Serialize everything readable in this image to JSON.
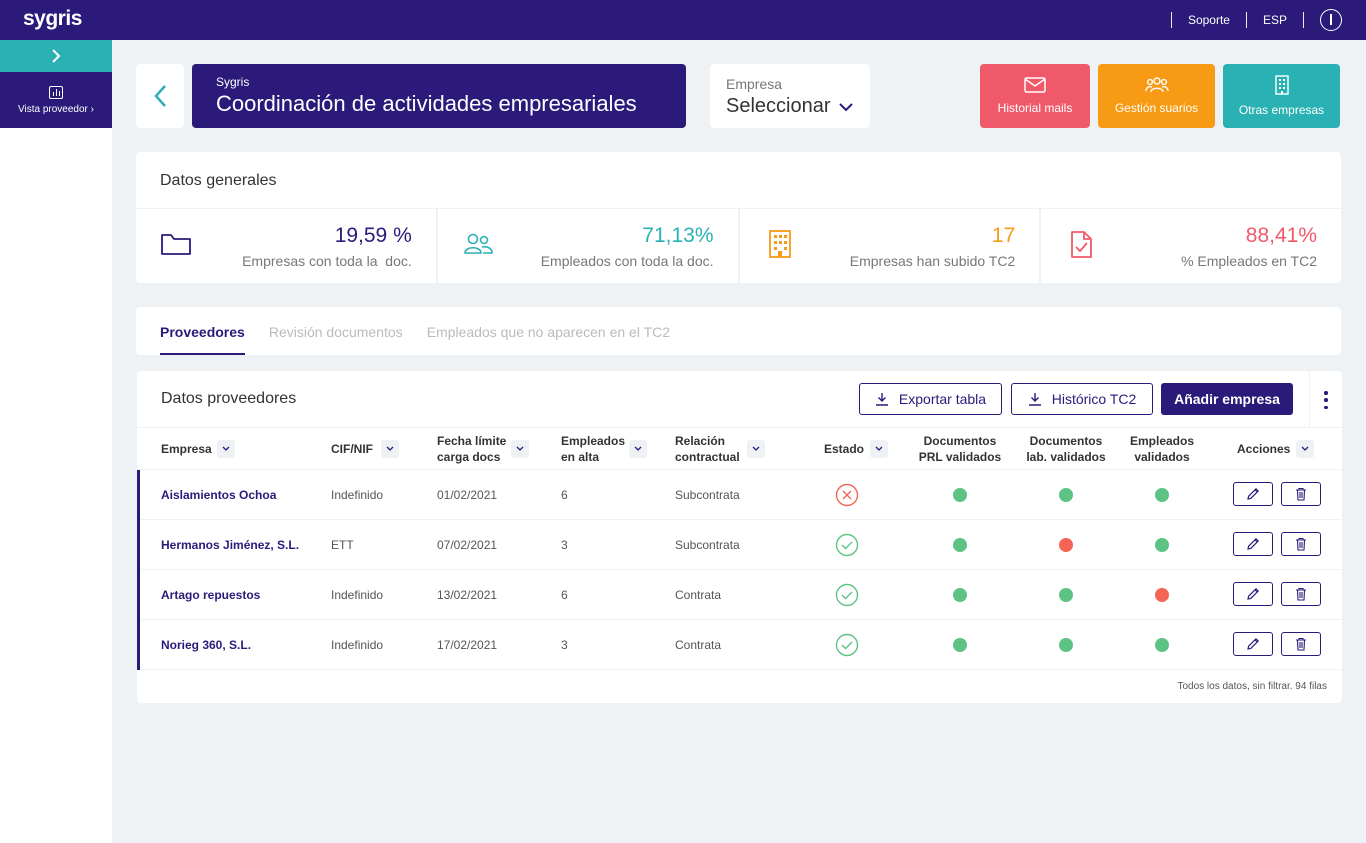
{
  "topbar": {
    "logo": "sygris",
    "support": "Soporte",
    "language": "ESP"
  },
  "sidebar": {
    "items": [
      {
        "label": "Vista proveedor"
      }
    ]
  },
  "header": {
    "subtitle": "Sygris",
    "title": "Coordinación de actividades empresariales",
    "empresa_label": "Empresa",
    "empresa_value": "Seleccionar"
  },
  "actions": {
    "mail": "Historial mails",
    "users": "Gestión suarios",
    "other": "Otras empresas"
  },
  "general": {
    "title": "Datos generales",
    "stats": [
      {
        "value": "19,59 %",
        "label": "Empresas con toda la  doc.",
        "color": "#2b1a7a",
        "icon": "folder-icon"
      },
      {
        "value": "71,13%",
        "label": "Empleados con toda la doc.",
        "color": "#2ab1b4",
        "icon": "users-icon"
      },
      {
        "value": "17",
        "label": "Empresas han subido TC2",
        "color": "#f79a14",
        "icon": "building-icon"
      },
      {
        "value": "88,41%",
        "label": "% Empleados en TC2",
        "color": "#f0596a",
        "icon": "checked-document-icon"
      }
    ]
  },
  "tabs": [
    {
      "label": "Proveedores",
      "active": true
    },
    {
      "label": "Revisión documentos",
      "active": false
    },
    {
      "label": "Empleados que no aparecen en el TC2",
      "active": false
    }
  ],
  "table": {
    "title": "Datos proveedores",
    "export_label": "Exportar tabla",
    "history_label": "Histórico TC2",
    "add_label": "Añadir empresa",
    "columns": {
      "empresa": "Empresa",
      "cif": "CIF/NIF",
      "fecha_1": "Fecha límite",
      "fecha_2": "carga docs",
      "empleados_1": "Empleados",
      "empleados_2": "en alta",
      "relacion_1": "Relación",
      "relacion_2": "contractual",
      "estado": "Estado",
      "prl_1": "Documentos",
      "prl_2": "PRL validados",
      "lab_1": "Documentos",
      "lab_2": "lab. validados",
      "emp_val_1": "Empleados",
      "emp_val_2": "validados",
      "acciones": "Acciones"
    },
    "rows": [
      {
        "empresa": "Aislamientos Ochoa",
        "cif": "Indefinido",
        "fecha": "01/02/2021",
        "empleados": "6",
        "relacion": "Subcontrata",
        "estado": "error",
        "prl": "ok",
        "lab": "ok",
        "emp_val": "ok"
      },
      {
        "empresa": "Hermanos Jiménez, S.L.",
        "cif": "ETT",
        "fecha": "07/02/2021",
        "empleados": "3",
        "relacion": "Subcontrata",
        "estado": "ok",
        "prl": "ok",
        "lab": "ko",
        "emp_val": "ok"
      },
      {
        "empresa": "Artago repuestos",
        "cif": "Indefinido",
        "fecha": "13/02/2021",
        "empleados": "6",
        "relacion": "Contrata",
        "estado": "ok",
        "prl": "ok",
        "lab": "ok",
        "emp_val": "ko"
      },
      {
        "empresa": "Norieg 360, S.L.",
        "cif": "Indefinido",
        "fecha": "17/02/2021",
        "empleados": "3",
        "relacion": "Contrata",
        "estado": "ok",
        "prl": "ok",
        "lab": "ok",
        "emp_val": "ok"
      }
    ],
    "footer": "Todos los datos, sin filtrar. 94 filas"
  },
  "colors": {
    "primary": "#2b1a7a",
    "teal": "#2ab1b4",
    "orange": "#f79a14",
    "red": "#f0596a",
    "green": "#5cc382",
    "dot_red": "#f46555"
  }
}
